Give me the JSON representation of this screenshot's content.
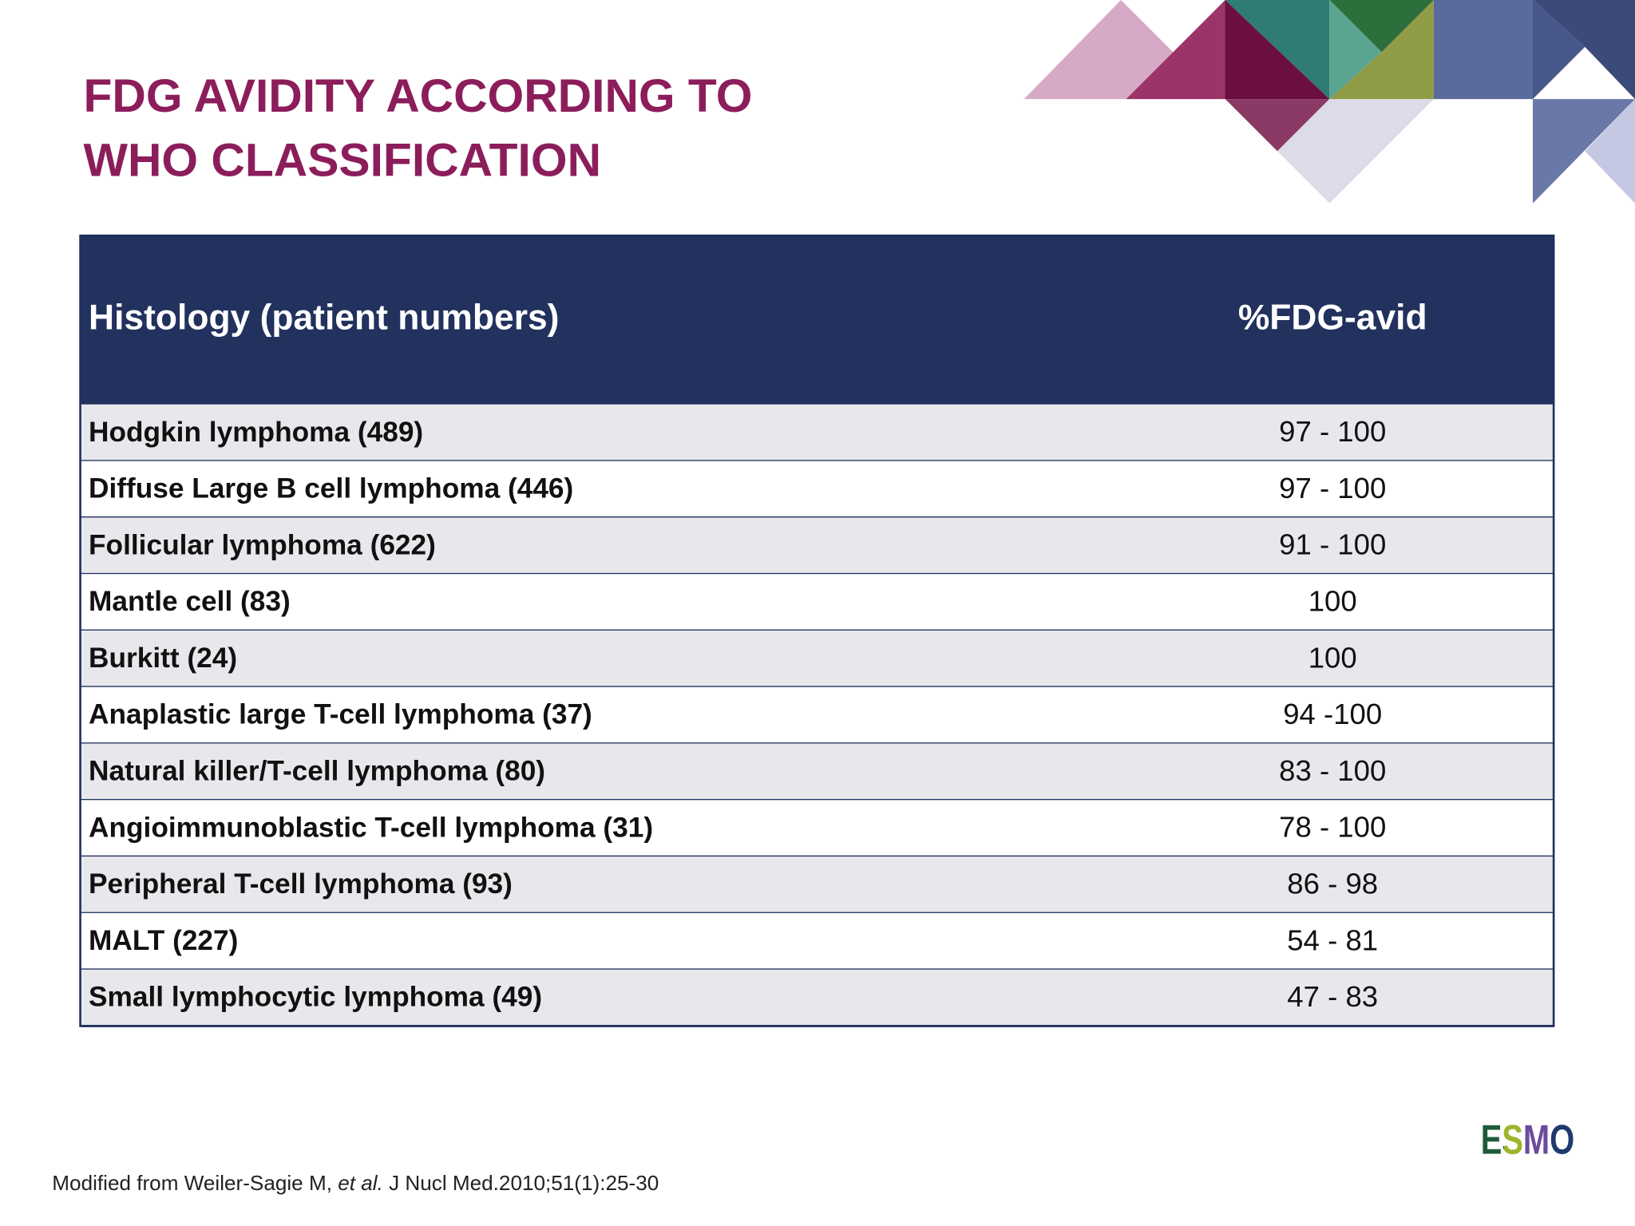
{
  "header": {
    "title": [
      "FDG AVIDITY ACCORDING TO",
      "WHO CLASSIFICATION"
    ]
  },
  "table": {
    "columns": [
      "Histology (patient numbers)",
      "%FDG-avid"
    ],
    "rows": [
      [
        "Hodgkin lymphoma (489)",
        "97 - 100"
      ],
      [
        "Diffuse Large B cell lymphoma (446)",
        "97 - 100"
      ],
      [
        "Follicular lymphoma (622)",
        "91 - 100"
      ],
      [
        "Mantle cell (83)",
        "100"
      ],
      [
        "Burkitt (24)",
        "100"
      ],
      [
        "Anaplastic large T-cell lymphoma (37)",
        "94 -100"
      ],
      [
        "Natural killer/T-cell lymphoma (80)",
        "83 - 100"
      ],
      [
        "Angioimmunoblastic T-cell lymphoma (31)",
        "78 - 100"
      ],
      [
        "Peripheral T-cell lymphoma (93)",
        "86 - 98"
      ],
      [
        "MALT (227)",
        "54 - 81"
      ],
      [
        "Small lymphocytic lymphoma (49)",
        "47 - 83"
      ]
    ]
  },
  "footer": {
    "source": [
      "Modified from Weiler-Sagie M, ",
      "et al.",
      " J Nucl Med.2010;51(1):25-30"
    ],
    "logo": "ESMO"
  }
}
